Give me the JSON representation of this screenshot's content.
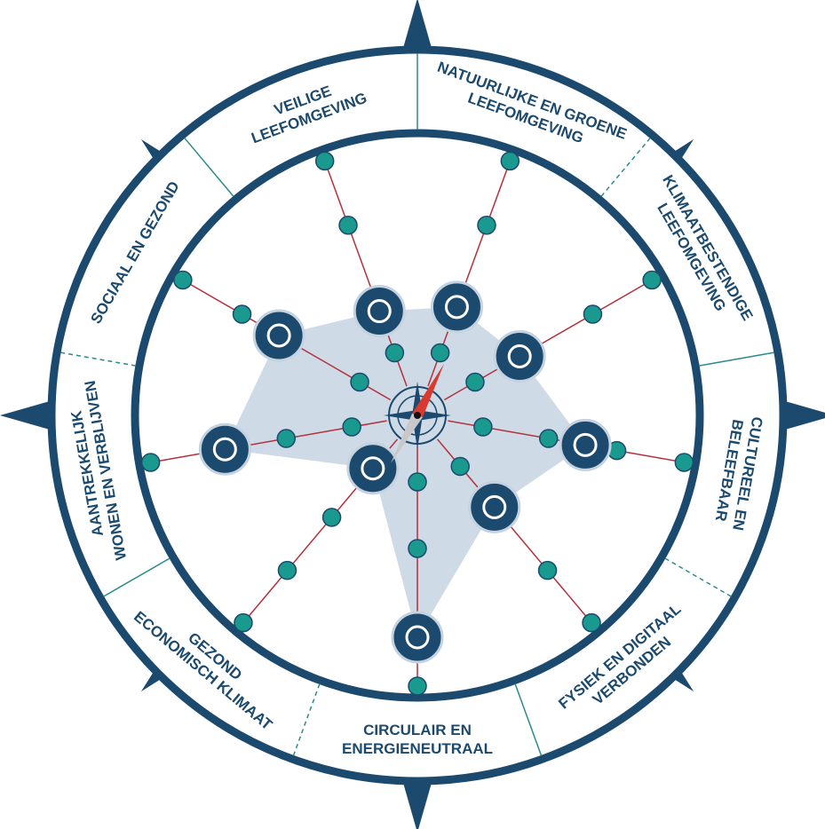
{
  "sectors": [
    {
      "label": [
        "VEILIGE",
        "LEEFOMGEVING"
      ]
    },
    {
      "label": [
        "NATUURLIJKE EN GROENE",
        "LEEFOMGEVING"
      ]
    },
    {
      "label": [
        "KLIMAATBESTENDIGE",
        "LEEFOMGEVING"
      ]
    },
    {
      "label": [
        "CULTUREEL EN",
        "BELEEFBAAR"
      ]
    },
    {
      "label": [
        "FYSIEK EN DIGITAAL",
        "VERBONDEN"
      ]
    },
    {
      "label": [
        "CIRCULAIR EN",
        "ENERGIENEUTRAAL"
      ]
    },
    {
      "label": [
        "GEZOND",
        "ECONOMISCH KLIMAAT"
      ]
    },
    {
      "label": [
        "AANTREKKELIJK",
        "WONEN EN VERBLIJVEN"
      ]
    },
    {
      "label": [
        "SOCIAAL EN GEZOND"
      ]
    }
  ]
}
